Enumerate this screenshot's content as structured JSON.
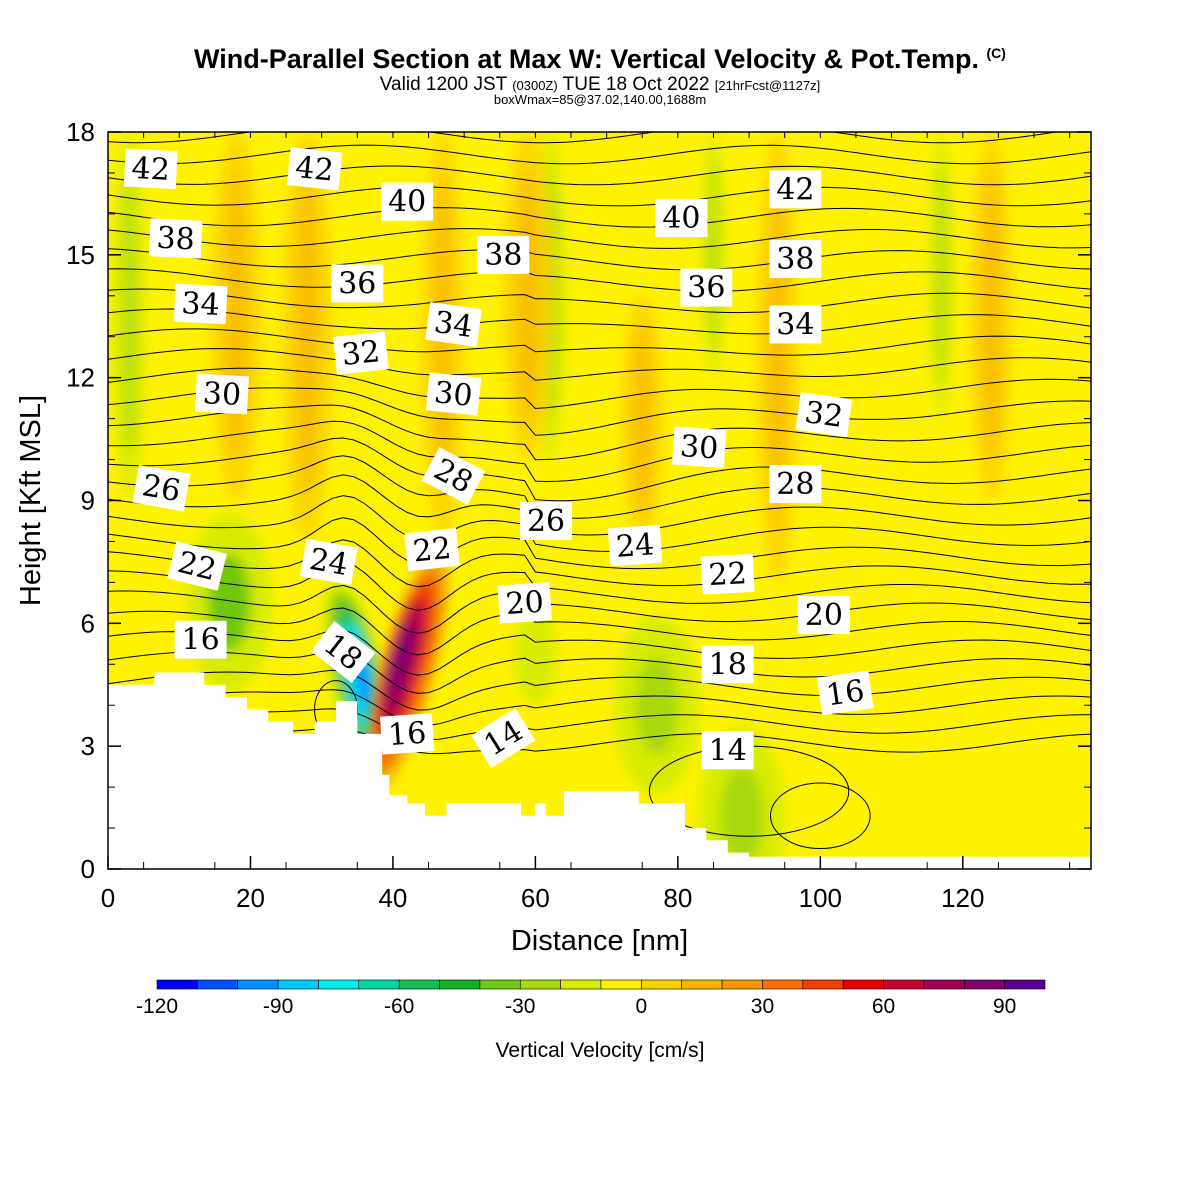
{
  "header": {
    "title": "Wind-Parallel Section at Max W: Vertical Velocity & Pot.Temp.",
    "title_mark": "(C)",
    "valid_pre": "Valid 1200 JST ",
    "valid_utc": "(0300Z)",
    "valid_mid": " TUE 18 Oct 2022 ",
    "valid_fcst": "[21hrFcst@1127z]",
    "box_info": "boxWmax=85@37.02,140.00,1688m"
  },
  "chart_data": {
    "type": "heatmap",
    "xlabel": "Distance [nm]",
    "ylabel": "Height [Kft MSL]",
    "xlim": [
      0,
      138
    ],
    "ylim": [
      0,
      18
    ],
    "x_ticks": [
      0,
      20,
      40,
      60,
      80,
      100,
      120
    ],
    "y_ticks": [
      0,
      3,
      6,
      9,
      12,
      15,
      18
    ],
    "grid": false,
    "colorbar": {
      "title": "Vertical Velocity [cm/s]",
      "placement": "bottom",
      "tick_values": [
        -120,
        -90,
        -60,
        -30,
        0,
        30,
        60,
        90
      ],
      "bins": [
        -120,
        -110,
        -100,
        -90,
        -80,
        -70,
        -60,
        -50,
        -40,
        -30,
        -20,
        -10,
        0,
        10,
        20,
        30,
        40,
        50,
        60,
        70,
        80,
        90,
        100
      ],
      "colors": [
        "#0000ff",
        "#0050ff",
        "#0090ff",
        "#00c8ff",
        "#00ecec",
        "#00d8a0",
        "#10c050",
        "#10b020",
        "#70c810",
        "#a8d810",
        "#d8ec00",
        "#fff200",
        "#fbd200",
        "#f8b400",
        "#f89800",
        "#f87000",
        "#f04000",
        "#e80000",
        "#c80030",
        "#a00058",
        "#800070",
        "#5a0090"
      ]
    },
    "background_color": "#fff200",
    "features": [
      {
        "kind": "green_streak",
        "x": 3,
        "y0": 9,
        "y1": 18,
        "w": 2
      },
      {
        "kind": "green_streak",
        "x": 62,
        "y0": 10,
        "y1": 18,
        "w": 2
      },
      {
        "kind": "green_streak",
        "x": 85,
        "y0": 12,
        "y1": 18,
        "w": 1.5
      },
      {
        "kind": "green_streak",
        "x": 117,
        "y0": 11,
        "y1": 18,
        "w": 1.5
      },
      {
        "kind": "orange_streak",
        "x": 18,
        "y0": 9,
        "y1": 18,
        "w": 3
      },
      {
        "kind": "orange_streak",
        "x": 28,
        "y0": 8,
        "y1": 18,
        "w": 3
      },
      {
        "kind": "orange_streak",
        "x": 47,
        "y0": 8,
        "y1": 18,
        "w": 2.5
      },
      {
        "kind": "orange_streak",
        "x": 59,
        "y0": 10,
        "y1": 18,
        "w": 3
      },
      {
        "kind": "orange_streak",
        "x": 75,
        "y0": 8,
        "y1": 14,
        "w": 2.5
      },
      {
        "kind": "orange_streak",
        "x": 94,
        "y0": 7,
        "y1": 18,
        "w": 2.5
      },
      {
        "kind": "orange_streak",
        "x": 124,
        "y0": 9,
        "y1": 18,
        "w": 2.5
      },
      {
        "kind": "downdraft_core",
        "x": 35,
        "y_center": 4.6,
        "peak": -100
      },
      {
        "kind": "updraft_core",
        "x": 42,
        "y_center": 4.8,
        "peak": 85
      },
      {
        "kind": "green_patch",
        "x": 17,
        "y": 6.5,
        "peak": -40
      },
      {
        "kind": "green_patch",
        "x": 60,
        "y": 5.2,
        "peak": -20
      },
      {
        "kind": "green_patch",
        "x": 77,
        "y": 4.0,
        "peak": -30
      },
      {
        "kind": "green_patch",
        "x": 89,
        "y": 1.3,
        "peak": -30
      }
    ],
    "terrain_outline": [
      [
        0,
        4.5
      ],
      [
        6.5,
        4.5
      ],
      [
        6.5,
        4.8
      ],
      [
        13.5,
        4.8
      ],
      [
        13.5,
        4.5
      ],
      [
        16.5,
        4.5
      ],
      [
        16.5,
        4.2
      ],
      [
        19.5,
        4.2
      ],
      [
        19.5,
        3.9
      ],
      [
        22.5,
        3.9
      ],
      [
        22.5,
        3.6
      ],
      [
        26,
        3.6
      ],
      [
        26,
        3.3
      ],
      [
        29,
        3.3
      ],
      [
        29,
        3.6
      ],
      [
        32,
        3.6
      ],
      [
        32,
        4.1
      ],
      [
        35,
        4.1
      ],
      [
        35,
        3.3
      ],
      [
        38.5,
        3.3
      ],
      [
        38.5,
        2.3
      ],
      [
        39.5,
        2.3
      ],
      [
        39.5,
        1.8
      ],
      [
        42,
        1.8
      ],
      [
        42,
        1.6
      ],
      [
        44.5,
        1.6
      ],
      [
        44.5,
        1.3
      ],
      [
        47.5,
        1.3
      ],
      [
        47.5,
        1.6
      ],
      [
        58,
        1.6
      ],
      [
        58,
        1.3
      ],
      [
        60,
        1.3
      ],
      [
        60,
        1.6
      ],
      [
        61.5,
        1.6
      ],
      [
        61.5,
        1.3
      ],
      [
        64,
        1.3
      ],
      [
        64,
        1.9
      ],
      [
        74.5,
        1.9
      ],
      [
        74.5,
        1.6
      ],
      [
        81,
        1.6
      ],
      [
        81,
        1.0
      ],
      [
        84,
        1.0
      ],
      [
        84,
        0.7
      ],
      [
        87,
        0.7
      ],
      [
        87,
        0.4
      ],
      [
        90,
        0.4
      ],
      [
        90,
        0.3
      ],
      [
        138,
        0.3
      ],
      [
        138,
        0
      ]
    ],
    "theta_contours": {
      "levels": [
        12,
        13,
        14,
        15,
        16,
        17,
        18,
        19,
        20,
        21,
        22,
        23,
        24,
        25,
        26,
        27,
        28,
        29,
        30,
        31,
        32,
        33,
        34,
        35,
        36,
        37,
        38,
        39,
        40,
        41,
        42,
        43,
        44
      ],
      "labels": [
        {
          "text": "42",
          "x": 6,
          "y": 17.1,
          "rot": 3
        },
        {
          "text": "42",
          "x": 29,
          "y": 17.1,
          "rot": 6
        },
        {
          "text": "40",
          "x": 42,
          "y": 16.3,
          "rot": 0
        },
        {
          "text": "40",
          "x": 80.5,
          "y": 15.9,
          "rot": 0
        },
        {
          "text": "42",
          "x": 96.5,
          "y": 16.6,
          "rot": 0
        },
        {
          "text": "38",
          "x": 9.5,
          "y": 15.4,
          "rot": 3
        },
        {
          "text": "38",
          "x": 55.5,
          "y": 15.0,
          "rot": 0
        },
        {
          "text": "38",
          "x": 96.5,
          "y": 14.9,
          "rot": 0
        },
        {
          "text": "36",
          "x": 35,
          "y": 14.3,
          "rot": 0
        },
        {
          "text": "36",
          "x": 84,
          "y": 14.2,
          "rot": 0
        },
        {
          "text": "34",
          "x": 13,
          "y": 13.8,
          "rot": 3
        },
        {
          "text": "34",
          "x": 48.5,
          "y": 13.3,
          "rot": 8
        },
        {
          "text": "34",
          "x": 96.5,
          "y": 13.3,
          "rot": 0
        },
        {
          "text": "32",
          "x": 35.5,
          "y": 12.6,
          "rot": -6
        },
        {
          "text": "30",
          "x": 16,
          "y": 11.6,
          "rot": 3
        },
        {
          "text": "30",
          "x": 48.5,
          "y": 11.6,
          "rot": 6
        },
        {
          "text": "32",
          "x": 100.5,
          "y": 11.1,
          "rot": 8
        },
        {
          "text": "30",
          "x": 83,
          "y": 10.3,
          "rot": 4
        },
        {
          "text": "28",
          "x": 48.5,
          "y": 9.6,
          "rot": 28
        },
        {
          "text": "28",
          "x": 96.5,
          "y": 9.4,
          "rot": 0
        },
        {
          "text": "26",
          "x": 7.5,
          "y": 9.3,
          "rot": 10
        },
        {
          "text": "26",
          "x": 61.5,
          "y": 8.5,
          "rot": 0
        },
        {
          "text": "24",
          "x": 74,
          "y": 7.9,
          "rot": -4
        },
        {
          "text": "24",
          "x": 31,
          "y": 7.5,
          "rot": 10
        },
        {
          "text": "22",
          "x": 45.5,
          "y": 7.8,
          "rot": -6
        },
        {
          "text": "22",
          "x": 12.5,
          "y": 7.4,
          "rot": 14
        },
        {
          "text": "22",
          "x": 87,
          "y": 7.2,
          "rot": -3
        },
        {
          "text": "20",
          "x": 58.5,
          "y": 6.5,
          "rot": -4
        },
        {
          "text": "20",
          "x": 100.5,
          "y": 6.2,
          "rot": 0
        },
        {
          "text": "16",
          "x": 13,
          "y": 5.6,
          "rot": 0
        },
        {
          "text": "18",
          "x": 33,
          "y": 5.3,
          "rot": 38
        },
        {
          "text": "18",
          "x": 87,
          "y": 5.0,
          "rot": 0
        },
        {
          "text": "16",
          "x": 103.5,
          "y": 4.3,
          "rot": -8
        },
        {
          "text": "16",
          "x": 42,
          "y": 3.3,
          "rot": -4
        },
        {
          "text": "14",
          "x": 55.5,
          "y": 3.2,
          "rot": -32
        },
        {
          "text": "14",
          "x": 87,
          "y": 2.9,
          "rot": 0
        }
      ]
    }
  }
}
